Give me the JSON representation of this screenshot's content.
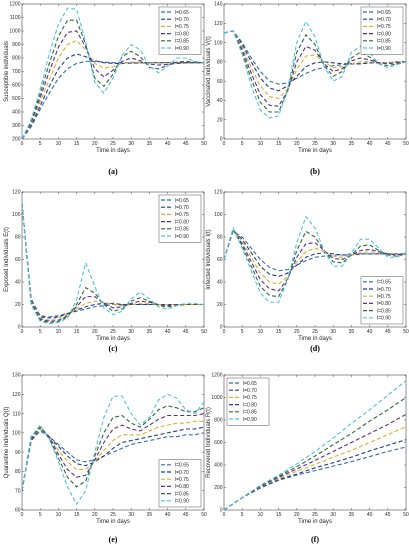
{
  "chart_data": [
    {
      "type": "line",
      "caption": "(a)",
      "xlabel": "Time in days",
      "ylabel": "Susceptible individuals",
      "xlim": [
        0,
        50
      ],
      "ylim": [
        200,
        1200
      ],
      "xticks": [
        0,
        5,
        10,
        15,
        20,
        25,
        30,
        35,
        40,
        45,
        50
      ],
      "yticks": [
        200,
        300,
        400,
        500,
        600,
        700,
        800,
        900,
        1000,
        1100,
        1200
      ],
      "legend_position": "top-right",
      "x": [
        0,
        2.5,
        5,
        7.5,
        10,
        12.5,
        15,
        17.5,
        20,
        22.5,
        25,
        27.5,
        30,
        32.5,
        35,
        37.5,
        40,
        42.5,
        45,
        47.5,
        50
      ],
      "series": [
        {
          "name": "l=0.65",
          "values": [
            200,
            290,
            420,
            540,
            650,
            720,
            760,
            775,
            775,
            770,
            765,
            765,
            765,
            765,
            765,
            765,
            765,
            765,
            765,
            765,
            765
          ]
        },
        {
          "name": "l=0.70",
          "values": [
            200,
            300,
            445,
            590,
            720,
            800,
            830,
            810,
            780,
            765,
            760,
            760,
            762,
            764,
            765,
            765,
            765,
            765,
            765,
            765,
            765
          ]
        },
        {
          "name": "l=0.75",
          "values": [
            200,
            310,
            475,
            640,
            800,
            900,
            930,
            860,
            760,
            725,
            735,
            760,
            770,
            768,
            764,
            762,
            762,
            764,
            765,
            765,
            765
          ]
        },
        {
          "name": "l=0.80",
          "values": [
            200,
            320,
            505,
            700,
            880,
            990,
            1000,
            880,
            720,
            660,
            710,
            775,
            800,
            780,
            755,
            748,
            752,
            760,
            764,
            765,
            765
          ]
        },
        {
          "name": "l=0.85",
          "values": [
            200,
            330,
            535,
            760,
            960,
            1080,
            1080,
            900,
            650,
            590,
            680,
            810,
            850,
            810,
            730,
            720,
            745,
            770,
            775,
            770,
            765
          ]
        },
        {
          "name": "l=0.90",
          "values": [
            200,
            340,
            570,
            830,
            1050,
            1170,
            1160,
            920,
            620,
            540,
            650,
            820,
            900,
            860,
            740,
            690,
            740,
            800,
            800,
            775,
            765
          ]
        }
      ]
    },
    {
      "type": "line",
      "caption": "(b)",
      "xlabel": "Time in days",
      "ylabel": "Vaccinated Individuals V(t)",
      "xlim": [
        0,
        50
      ],
      "ylim": [
        0,
        140
      ],
      "xticks": [
        0,
        5,
        10,
        15,
        20,
        25,
        30,
        35,
        40,
        45,
        50
      ],
      "yticks": [
        0,
        20,
        40,
        60,
        80,
        100,
        120,
        140
      ],
      "legend_position": "top-right",
      "x": [
        0,
        2.5,
        5,
        7.5,
        10,
        12.5,
        15,
        17.5,
        20,
        22.5,
        25,
        27.5,
        30,
        32.5,
        35,
        37.5,
        40,
        42.5,
        45,
        47.5,
        50
      ],
      "series": [
        {
          "name": "l=0.65",
          "values": [
            110,
            112,
            100,
            84,
            70,
            60,
            57,
            58,
            63,
            68,
            72,
            74,
            76,
            77,
            78,
            78,
            79,
            79,
            79,
            80,
            80
          ]
        },
        {
          "name": "l=0.70",
          "values": [
            110,
            112,
            98,
            80,
            63,
            53,
            50,
            55,
            65,
            75,
            79,
            80,
            79,
            78,
            78,
            78,
            79,
            79,
            79,
            80,
            80
          ]
        },
        {
          "name": "l=0.75",
          "values": [
            110,
            112,
            96,
            74,
            55,
            44,
            42,
            52,
            72,
            86,
            87,
            80,
            74,
            75,
            78,
            80,
            80,
            79,
            79,
            80,
            80
          ]
        },
        {
          "name": "l=0.80",
          "values": [
            110,
            112,
            93,
            68,
            46,
            35,
            34,
            50,
            80,
            96,
            92,
            78,
            70,
            73,
            81,
            84,
            82,
            79,
            78,
            79,
            80
          ]
        },
        {
          "name": "l=0.85",
          "values": [
            110,
            112,
            90,
            62,
            38,
            28,
            28,
            50,
            90,
            108,
            98,
            76,
            65,
            70,
            84,
            90,
            85,
            78,
            76,
            78,
            80
          ]
        },
        {
          "name": "l=0.90",
          "values": [
            110,
            112,
            88,
            55,
            30,
            22,
            24,
            52,
            100,
            122,
            106,
            75,
            60,
            65,
            90,
            96,
            90,
            78,
            74,
            77,
            80
          ]
        }
      ]
    },
    {
      "type": "line",
      "caption": "(c)",
      "xlabel": "Time in days",
      "ylabel": "Exposed Individuals E(t)",
      "xlim": [
        0,
        50
      ],
      "ylim": [
        0,
        120
      ],
      "xticks": [
        0,
        5,
        10,
        15,
        20,
        25,
        30,
        35,
        40,
        45,
        50
      ],
      "yticks": [
        0,
        20,
        40,
        60,
        80,
        100,
        120
      ],
      "legend_position": "top-right",
      "x": [
        0,
        2.5,
        5,
        7.5,
        10,
        12.5,
        15,
        17.5,
        20,
        22.5,
        25,
        27.5,
        30,
        32.5,
        35,
        37.5,
        40,
        42.5,
        45,
        47.5,
        50
      ],
      "series": [
        {
          "name": "l=0.65",
          "values": [
            110,
            25,
            10,
            9,
            10,
            12,
            14,
            16,
            18,
            19,
            20,
            20,
            20,
            20,
            20,
            20,
            20,
            20,
            20,
            20,
            20
          ]
        },
        {
          "name": "l=0.70",
          "values": [
            110,
            24,
            9,
            8,
            9,
            12,
            15,
            18,
            20,
            21,
            21,
            20,
            20,
            20,
            20,
            20,
            20,
            20,
            20,
            20,
            20
          ]
        },
        {
          "name": "l=0.75",
          "values": [
            110,
            23,
            8,
            6,
            8,
            11,
            16,
            21,
            23,
            22,
            20,
            19,
            20,
            21,
            21,
            20,
            20,
            20,
            20,
            20,
            20
          ]
        },
        {
          "name": "l=0.80",
          "values": [
            110,
            22,
            7,
            5,
            6,
            10,
            18,
            27,
            27,
            21,
            17,
            18,
            21,
            23,
            22,
            20,
            19,
            20,
            20,
            20,
            20
          ]
        },
        {
          "name": "l=0.85",
          "values": [
            110,
            21,
            6,
            4,
            5,
            9,
            20,
            35,
            30,
            20,
            14,
            16,
            23,
            26,
            23,
            19,
            18,
            19,
            20,
            20,
            20
          ]
        },
        {
          "name": "l=0.90",
          "values": [
            110,
            20,
            5,
            3,
            4,
            8,
            24,
            57,
            36,
            17,
            11,
            14,
            25,
            31,
            25,
            18,
            16,
            19,
            21,
            21,
            20
          ]
        }
      ]
    },
    {
      "type": "line",
      "caption": "(d)",
      "xlabel": "Time in days",
      "ylabel": "Infected Individuals I(t)",
      "xlim": [
        0,
        50
      ],
      "ylim": [
        0,
        120
      ],
      "xticks": [
        0,
        5,
        10,
        15,
        20,
        25,
        30,
        35,
        40,
        45,
        50
      ],
      "yticks": [
        0,
        20,
        40,
        60,
        80,
        100,
        120
      ],
      "legend_position": "bottom-right",
      "x": [
        0,
        2.5,
        5,
        7.5,
        10,
        12.5,
        15,
        17.5,
        20,
        22.5,
        25,
        27.5,
        30,
        32.5,
        35,
        37.5,
        40,
        42.5,
        45,
        47.5,
        50
      ],
      "series": [
        {
          "name": "l=0.65",
          "values": [
            60,
            85,
            80,
            70,
            60,
            53,
            50,
            51,
            55,
            59,
            62,
            63,
            64,
            64,
            65,
            65,
            65,
            65,
            65,
            65,
            65
          ]
        },
        {
          "name": "l=0.70",
          "values": [
            60,
            86,
            78,
            66,
            54,
            47,
            45,
            48,
            55,
            62,
            65,
            66,
            65,
            64,
            64,
            65,
            65,
            65,
            65,
            65,
            65
          ]
        },
        {
          "name": "l=0.75",
          "values": [
            60,
            86,
            76,
            62,
            48,
            40,
            38,
            45,
            58,
            67,
            70,
            67,
            63,
            62,
            64,
            66,
            67,
            66,
            65,
            65,
            65
          ]
        },
        {
          "name": "l=0.80",
          "values": [
            60,
            87,
            74,
            58,
            42,
            34,
            32,
            43,
            62,
            74,
            75,
            68,
            61,
            60,
            64,
            68,
            69,
            67,
            65,
            64,
            65
          ]
        },
        {
          "name": "l=0.85",
          "values": [
            60,
            87,
            72,
            54,
            36,
            28,
            27,
            42,
            68,
            85,
            80,
            68,
            58,
            57,
            64,
            72,
            73,
            68,
            64,
            63,
            65
          ]
        },
        {
          "name": "l=0.90",
          "values": [
            60,
            88,
            70,
            50,
            30,
            22,
            22,
            42,
            75,
            98,
            88,
            68,
            54,
            54,
            66,
            78,
            78,
            70,
            62,
            62,
            66
          ]
        }
      ]
    },
    {
      "type": "line",
      "caption": "(e)",
      "xlabel": "Time in days",
      "ylabel": "Quarantine Individuals Q(t)",
      "xlim": [
        0,
        50
      ],
      "ylim": [
        60,
        130
      ],
      "xticks": [
        0,
        5,
        10,
        15,
        20,
        25,
        30,
        35,
        40,
        45,
        50
      ],
      "yticks": [
        60,
        70,
        80,
        90,
        100,
        110,
        120,
        130
      ],
      "legend_position": "bottom-right",
      "x": [
        0,
        2.5,
        5,
        7.5,
        10,
        12.5,
        15,
        17.5,
        20,
        22.5,
        25,
        27.5,
        30,
        32.5,
        35,
        37.5,
        40,
        42.5,
        45,
        47.5,
        50
      ],
      "series": [
        {
          "name": "l=0.65",
          "values": [
            70,
            96,
            101,
            98,
            94,
            90,
            86,
            85,
            86,
            88,
            90,
            92,
            94,
            95,
            96,
            97,
            98,
            98,
            99,
            99,
            100
          ]
        },
        {
          "name": "l=0.70",
          "values": [
            70,
            96,
            102,
            98,
            93,
            88,
            84,
            83,
            85,
            88,
            92,
            95,
            96,
            97,
            98,
            99,
            100,
            101,
            102,
            102,
            103
          ]
        },
        {
          "name": "l=0.75",
          "values": [
            70,
            97,
            102,
            98,
            91,
            85,
            81,
            81,
            85,
            91,
            96,
            99,
            99,
            99,
            101,
            103,
            104,
            105,
            105,
            106,
            106
          ]
        },
        {
          "name": "l=0.80",
          "values": [
            70,
            97,
            103,
            98,
            89,
            81,
            77,
            78,
            86,
            95,
            102,
            104,
            102,
            101,
            104,
            107,
            109,
            109,
            109,
            109,
            110
          ]
        },
        {
          "name": "l=0.85",
          "values": [
            70,
            98,
            103,
            97,
            87,
            77,
            72,
            75,
            88,
            100,
            108,
            109,
            105,
            103,
            107,
            112,
            114,
            113,
            111,
            111,
            113
          ]
        },
        {
          "name": "l=0.90",
          "values": [
            70,
            98,
            104,
            97,
            85,
            72,
            63,
            70,
            90,
            108,
            119,
            119,
            110,
            104,
            108,
            117,
            120,
            118,
            112,
            110,
            116
          ]
        }
      ]
    },
    {
      "type": "line",
      "caption": "(f)",
      "xlabel": "Time in days",
      "ylabel": "Recovered Individuals R(t)",
      "xlim": [
        0,
        50
      ],
      "ylim": [
        0,
        1200
      ],
      "xticks": [
        0,
        5,
        10,
        15,
        20,
        25,
        30,
        35,
        40,
        45,
        50
      ],
      "yticks": [
        0,
        200,
        400,
        600,
        800,
        1000,
        1200
      ],
      "legend_position": "top-left",
      "x": [
        0,
        5,
        10,
        15,
        20,
        25,
        30,
        35,
        40,
        45,
        50
      ],
      "series": [
        {
          "name": "l=0.65",
          "values": [
            0,
            110,
            195,
            265,
            310,
            350,
            390,
            430,
            475,
            520,
            560
          ]
        },
        {
          "name": "l=0.70",
          "values": [
            0,
            110,
            200,
            270,
            320,
            375,
            420,
            470,
            525,
            575,
            625
          ]
        },
        {
          "name": "l=0.75",
          "values": [
            0,
            110,
            205,
            280,
            345,
            405,
            470,
            530,
            600,
            670,
            740
          ]
        },
        {
          "name": "l=0.80",
          "values": [
            0,
            110,
            210,
            290,
            365,
            440,
            520,
            600,
            680,
            760,
            850
          ]
        },
        {
          "name": "l=0.85",
          "values": [
            0,
            110,
            215,
            300,
            385,
            480,
            580,
            680,
            790,
            890,
            1000
          ]
        },
        {
          "name": "l=0.90",
          "values": [
            0,
            110,
            220,
            310,
            410,
            520,
            640,
            770,
            890,
            1020,
            1150
          ]
        }
      ]
    }
  ],
  "colors": [
    "#2f6bb0",
    "#1f3c88",
    "#d9b12a",
    "#5a2d91",
    "#2e6b34",
    "#4fc0e8"
  ]
}
